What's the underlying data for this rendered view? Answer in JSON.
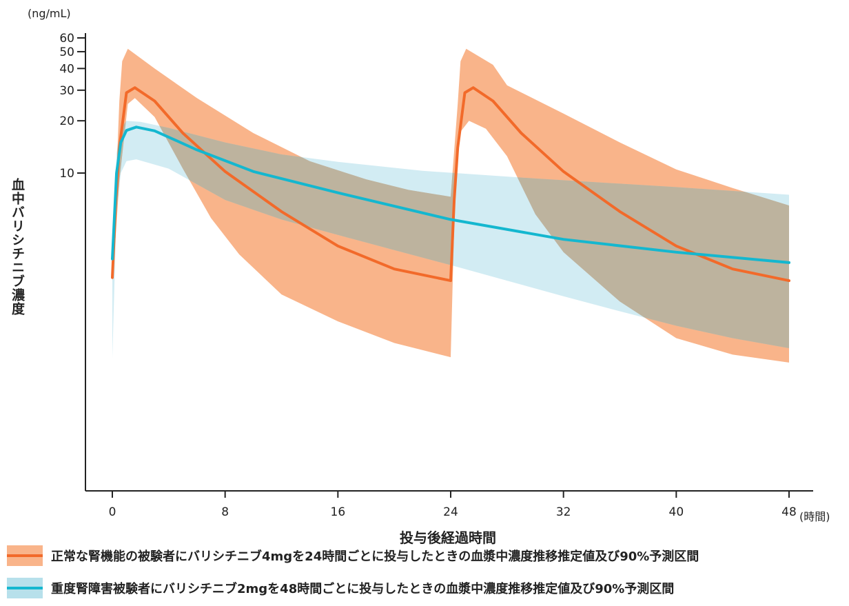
{
  "chart_data": {
    "type": "line",
    "y_unit": "(ng/mL)",
    "ylabel": "血中バリシチニブ濃度",
    "xlabel": "投与後経過時間",
    "x_unit": "(時間)",
    "y_scale": "log",
    "ylim": [
      0.6,
      60
    ],
    "xlim": [
      0,
      48
    ],
    "x_ticks": [
      0,
      8,
      16,
      24,
      32,
      40,
      48
    ],
    "y_ticks": [
      10,
      20,
      30,
      40,
      50,
      60
    ],
    "grid": false,
    "legend_position": "bottom",
    "series": [
      {
        "name": "正常な腎機能の被験者にバリシチニブ4mgを24時間ごとに投与したときの血漿中濃度推移推定値及び90%予測区間",
        "line_color": "#f26a2a",
        "band_color": "#f9b48a",
        "median": [
          [
            0,
            2.5
          ],
          [
            0.25,
            7
          ],
          [
            0.5,
            14
          ],
          [
            1,
            29
          ],
          [
            1.6,
            31
          ],
          [
            3,
            26
          ],
          [
            5,
            17
          ],
          [
            8,
            10.2
          ],
          [
            12,
            6
          ],
          [
            16,
            3.8
          ],
          [
            20,
            2.8
          ],
          [
            24,
            2.4
          ],
          [
            24.25,
            7
          ],
          [
            24.5,
            14
          ],
          [
            25,
            29
          ],
          [
            25.6,
            31
          ],
          [
            27,
            26
          ],
          [
            29,
            17
          ],
          [
            32,
            10.2
          ],
          [
            36,
            6
          ],
          [
            40,
            3.8
          ],
          [
            44,
            2.8
          ],
          [
            48,
            2.4
          ]
        ],
        "band_upper": [
          [
            0,
            2.5
          ],
          [
            0.5,
            26
          ],
          [
            0.7,
            44
          ],
          [
            1.1,
            52
          ],
          [
            3,
            40
          ],
          [
            6,
            27
          ],
          [
            10,
            17
          ],
          [
            14,
            11.7
          ],
          [
            18,
            9.2
          ],
          [
            21,
            8
          ],
          [
            24,
            7.3
          ],
          [
            24.5,
            25
          ],
          [
            24.7,
            44
          ],
          [
            25.1,
            52
          ],
          [
            27,
            42
          ],
          [
            28,
            32
          ],
          [
            32,
            22
          ],
          [
            36,
            15
          ],
          [
            40,
            10.5
          ],
          [
            44,
            8.2
          ],
          [
            48,
            6.5
          ]
        ],
        "band_lower": [
          [
            0,
            2.4
          ],
          [
            0.25,
            4.5
          ],
          [
            0.5,
            9
          ],
          [
            1.1,
            25
          ],
          [
            1.6,
            27
          ],
          [
            3,
            21
          ],
          [
            5,
            10.6
          ],
          [
            7,
            5.5
          ],
          [
            9,
            3.4
          ],
          [
            12,
            2
          ],
          [
            16,
            1.4
          ],
          [
            20,
            1.05
          ],
          [
            24,
            0.87
          ],
          [
            24.25,
            5
          ],
          [
            24.5,
            14
          ],
          [
            24.75,
            17.5
          ],
          [
            25.3,
            20
          ],
          [
            26.5,
            18
          ],
          [
            28,
            12.5
          ],
          [
            30,
            5.8
          ],
          [
            32,
            3.5
          ],
          [
            36,
            1.82
          ],
          [
            40,
            1.12
          ],
          [
            44,
            0.9
          ],
          [
            48,
            0.81
          ]
        ]
      },
      {
        "name": "重度腎障害被験者にバリシチニブ2mgを48時間ごとに投与したときの血漿中濃度推移推定値及び90%予測区間",
        "line_color": "#14b7cf",
        "band_color": "#b7e0eb",
        "median": [
          [
            0,
            3.2
          ],
          [
            0.3,
            10
          ],
          [
            0.6,
            15
          ],
          [
            1,
            17.6
          ],
          [
            1.7,
            18.4
          ],
          [
            3,
            17.5
          ],
          [
            6,
            13.6
          ],
          [
            10,
            10.2
          ],
          [
            16,
            7.7
          ],
          [
            24,
            5.4
          ],
          [
            32,
            4.15
          ],
          [
            40,
            3.5
          ],
          [
            48,
            3.05
          ]
        ],
        "band_upper": [
          [
            0,
            3.2
          ],
          [
            0.3,
            13
          ],
          [
            0.6,
            18
          ],
          [
            1,
            20
          ],
          [
            2,
            19.7
          ],
          [
            4,
            18.2
          ],
          [
            8,
            15
          ],
          [
            12,
            12.8
          ],
          [
            16,
            11.6
          ],
          [
            22,
            10.3
          ],
          [
            30,
            9.3
          ],
          [
            40,
            8.3
          ],
          [
            48,
            7.5
          ]
        ],
        "band_lower": [
          [
            0,
            0.86
          ],
          [
            0.3,
            6
          ],
          [
            0.6,
            10
          ],
          [
            1,
            11.7
          ],
          [
            1.7,
            12
          ],
          [
            4,
            10.6
          ],
          [
            8,
            7
          ],
          [
            12,
            5.4
          ],
          [
            16,
            4.4
          ],
          [
            20,
            3.6
          ],
          [
            24,
            2.95
          ],
          [
            28,
            2.4
          ],
          [
            32,
            1.95
          ],
          [
            36,
            1.6
          ],
          [
            40,
            1.32
          ],
          [
            44,
            1.12
          ],
          [
            48,
            0.98
          ]
        ]
      }
    ]
  }
}
